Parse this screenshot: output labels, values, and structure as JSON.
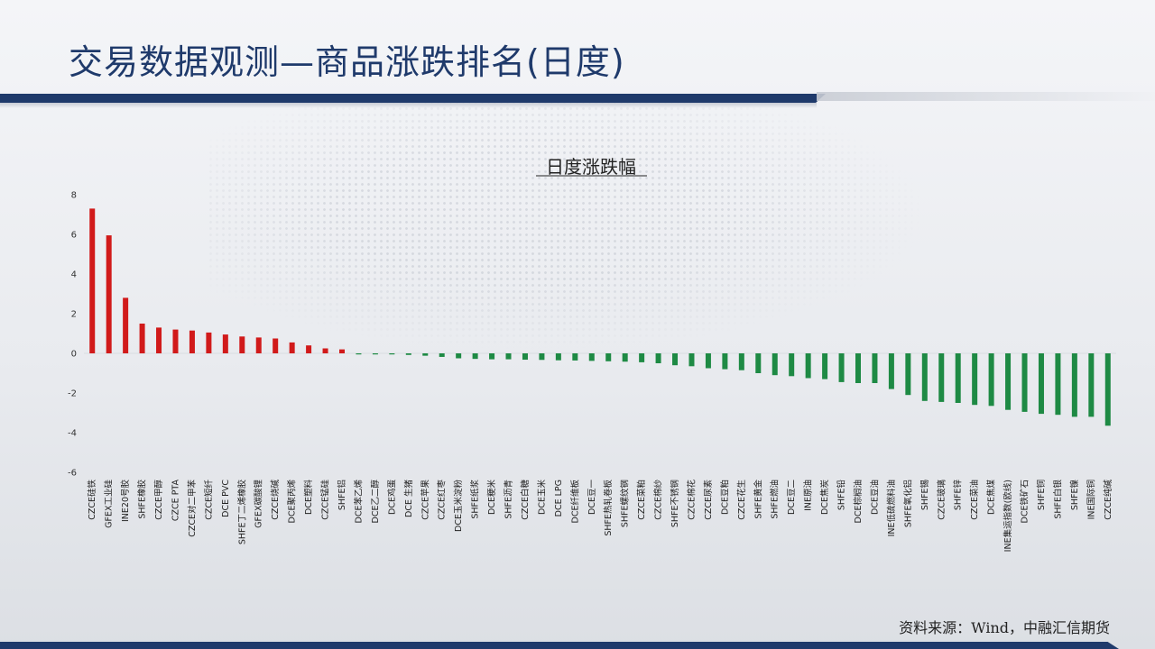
{
  "page": {
    "title": "交易数据观测—商品涨跌排名(日度)",
    "source": "资料来源：Wind，中融汇信期货",
    "colors": {
      "primary": "#1f3a6b",
      "up": "#d11a1a",
      "down": "#1e8a44"
    }
  },
  "chart_data": {
    "type": "bar",
    "title": "日度涨跌幅",
    "xlabel": "",
    "ylabel": "",
    "ylim": [
      -6,
      8
    ],
    "yticks": [
      8,
      6,
      4,
      2,
      0,
      -2,
      -4,
      -6
    ],
    "grid": false,
    "categories": [
      "CZCE硅铁",
      "GFEX工业硅",
      "INE20号胶",
      "SHFE橡胶",
      "CZCE甲醇",
      "CZCE PTA",
      "CZCE对二甲苯",
      "CZCE短纤",
      "DCE PVC",
      "SHFE丁二烯橡胶",
      "GFEX碳酸锂",
      "CZCE烧碱",
      "DCE聚丙烯",
      "DCE塑料",
      "CZCE锰硅",
      "SHFE铝",
      "DCE苯乙烯",
      "DCE乙二醇",
      "DCE鸡蛋",
      "DCE 生猪",
      "CZCE苹果",
      "CZCE红枣",
      "DCE玉米淀粉",
      "SHFE纸浆",
      "DCE粳米",
      "SHFE沥青",
      "CZCE白糖",
      "DCE玉米",
      "DCE LPG",
      "DCE纤维板",
      "DCE豆一",
      "SHFE热轧卷板",
      "SHFE螺纹钢",
      "CZCE菜粕",
      "CZCE棉纱",
      "SHFE不锈钢",
      "CZCE棉花",
      "CZCE尿素",
      "DCE豆粕",
      "CZCE花生",
      "SHFE黄金",
      "SHFE燃油",
      "DCE豆二",
      "INE原油",
      "DCE焦炭",
      "SHFE铅",
      "DCE棕榈油",
      "DCE豆油",
      "INE低硫燃料油",
      "SHFE氧化铝",
      "SHFE锡",
      "CZCE玻璃",
      "SHFE锌",
      "CZCE菜油",
      "DCE焦煤",
      "INE集运指数(欧线)",
      "DCE铁矿石",
      "SHFE铜",
      "SHFE白银",
      "SHFE镍",
      "INE国际铜",
      "CZCE纯碱"
    ],
    "values": [
      7.3,
      5.95,
      2.8,
      1.5,
      1.3,
      1.2,
      1.15,
      1.05,
      0.95,
      0.85,
      0.8,
      0.75,
      0.55,
      0.4,
      0.25,
      0.2,
      0.0,
      -0.02,
      -0.05,
      -0.08,
      -0.12,
      -0.18,
      -0.25,
      -0.28,
      -0.3,
      -0.3,
      -0.32,
      -0.33,
      -0.35,
      -0.36,
      -0.38,
      -0.4,
      -0.42,
      -0.45,
      -0.5,
      -0.6,
      -0.65,
      -0.75,
      -0.8,
      -0.85,
      -1.0,
      -1.1,
      -1.15,
      -1.25,
      -1.3,
      -1.45,
      -1.5,
      -1.5,
      -1.8,
      -2.1,
      -2.4,
      -2.45,
      -2.5,
      -2.6,
      -2.65,
      -2.85,
      -2.95,
      -3.05,
      -3.1,
      -3.2,
      -3.2,
      -3.65
    ]
  }
}
